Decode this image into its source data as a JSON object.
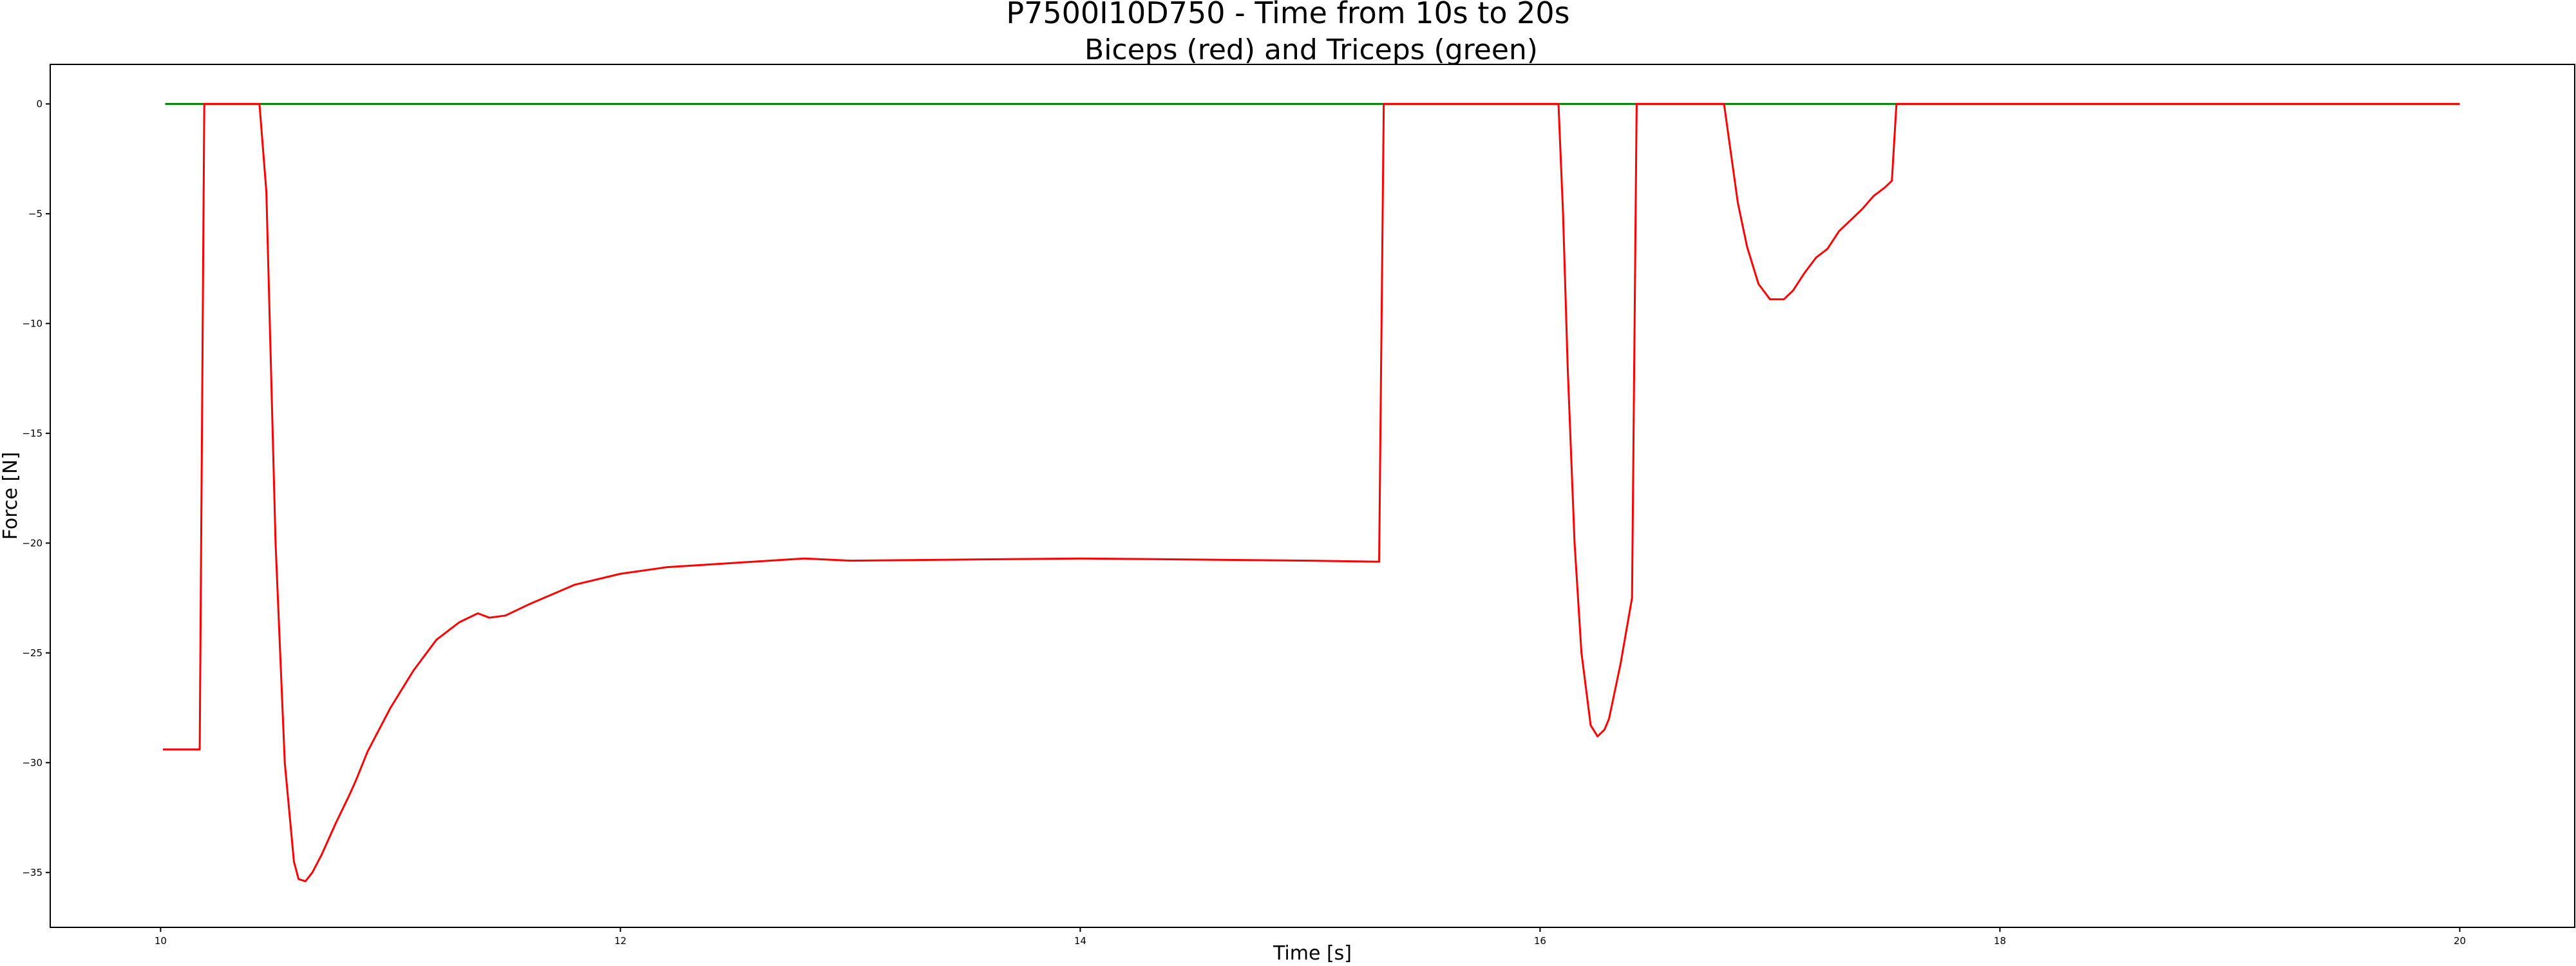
{
  "chart_data": {
    "type": "line",
    "title": "P7500I10D750 - Time from 10s to 20s",
    "subtitle": "Biceps (red) and Triceps (green)",
    "xlabel": "Time [s]",
    "ylabel": "Force [N]",
    "xlim": [
      9.52,
      20.5
    ],
    "ylim": [
      -37.5,
      1.8
    ],
    "xticks": [
      10,
      12,
      14,
      16,
      18,
      20
    ],
    "yticks": [
      0,
      -5,
      -10,
      -15,
      -20,
      -25,
      -30,
      -35
    ],
    "grid": false,
    "series": [
      {
        "color": "#ff0000",
        "x": [
          10.01,
          10.17,
          10.19,
          10.43,
          10.46,
          10.5,
          10.54,
          10.58,
          10.6,
          10.63,
          10.66,
          10.7,
          10.76,
          10.82,
          10.85,
          10.9,
          10.95,
          11.0,
          11.1,
          11.2,
          11.3,
          11.38,
          11.43,
          11.5,
          11.6,
          11.8,
          12.0,
          12.2,
          12.5,
          12.8,
          13.0,
          13.5,
          14.0,
          14.5,
          15.0,
          15.3,
          15.32,
          16.08,
          16.1,
          16.12,
          16.15,
          16.18,
          16.22,
          16.25,
          16.28,
          16.3,
          16.35,
          16.4,
          16.42,
          16.8,
          16.82,
          16.86,
          16.9,
          16.95,
          17.0,
          17.06,
          17.1,
          17.15,
          17.2,
          17.25,
          17.3,
          17.35,
          17.4,
          17.45,
          17.5,
          17.53,
          17.55,
          18.0,
          19.0,
          20.0
        ],
        "y": [
          -29.4,
          -29.4,
          0,
          0,
          -4,
          -20,
          -30,
          -34.5,
          -35.3,
          -35.4,
          -35.0,
          -34.2,
          -32.8,
          -31.5,
          -30.8,
          -29.5,
          -28.5,
          -27.5,
          -25.8,
          -24.4,
          -23.6,
          -23.2,
          -23.4,
          -23.3,
          -22.8,
          -21.9,
          -21.4,
          -21.1,
          -20.9,
          -20.7,
          -20.8,
          -20.75,
          -20.7,
          -20.75,
          -20.8,
          -20.85,
          0,
          0,
          -5,
          -12,
          -20,
          -25,
          -28.3,
          -28.8,
          -28.5,
          -28.0,
          -25.5,
          -22.5,
          0,
          0,
          -1.5,
          -4.5,
          -6.5,
          -8.2,
          -8.9,
          -8.9,
          -8.5,
          -7.7,
          -7.0,
          -6.6,
          -5.8,
          -5.3,
          -4.8,
          -4.2,
          -3.8,
          -3.5,
          0,
          0,
          0,
          0
        ]
      },
      {
        "color": "#008000",
        "x": [
          10.02,
          20.0
        ],
        "y": [
          0,
          0
        ]
      }
    ]
  }
}
